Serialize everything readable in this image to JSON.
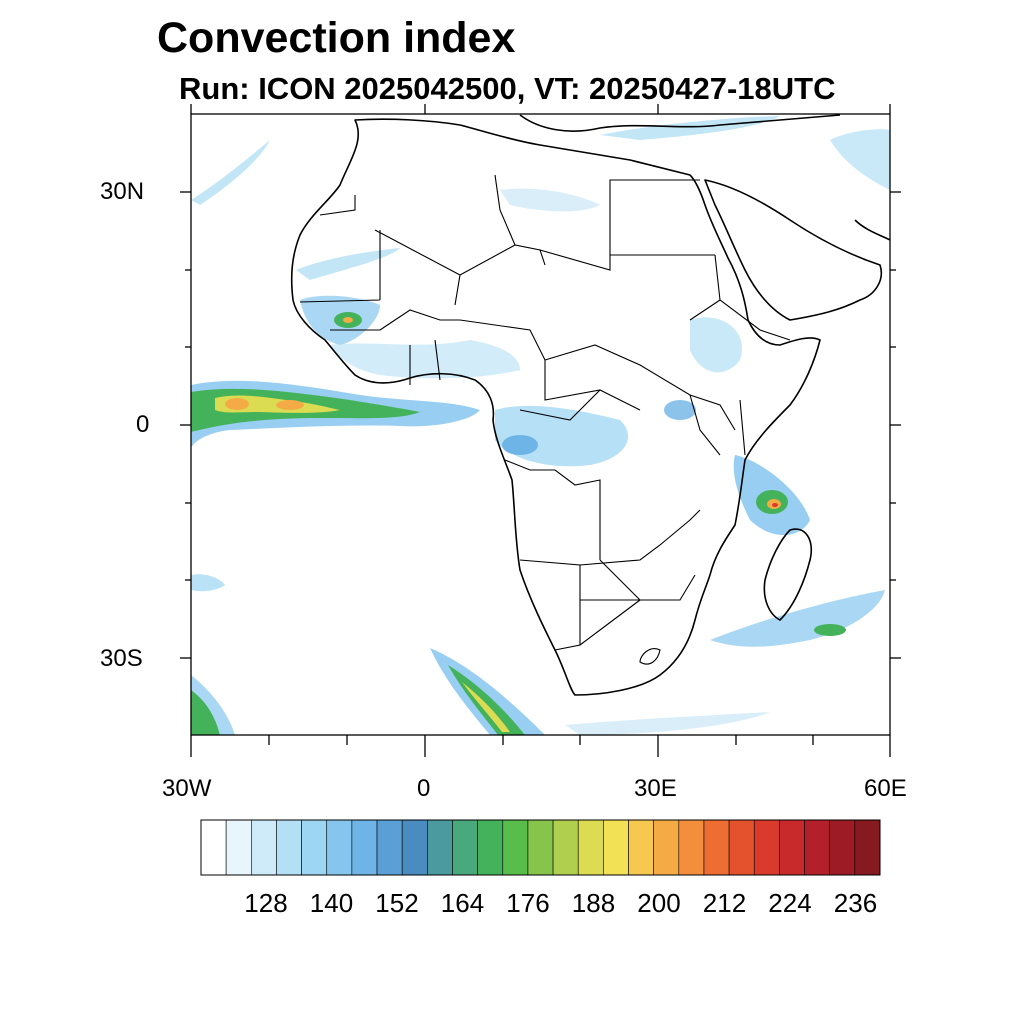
{
  "title": "Convection index",
  "subtitle": "Run: ICON 2025042500,  VT: 20250427-18UTC",
  "axes": {
    "lat_labels": [
      "30N",
      "0",
      "30S"
    ],
    "lon_labels": [
      "30W",
      "0",
      "30E",
      "60E"
    ],
    "lon_range": [
      -30,
      60
    ],
    "lat_range": [
      -40,
      40
    ]
  },
  "colorbar": {
    "colors": [
      "#ffffff",
      "#e8f5fc",
      "#cfeaf8",
      "#b4e0f5",
      "#9cd6f3",
      "#86c6ee",
      "#6eb4e6",
      "#5a9fd6",
      "#4a8cbf",
      "#4a9aa0",
      "#49a87c",
      "#44b25a",
      "#58bd4a",
      "#86c44c",
      "#b0cf4e",
      "#dcdc52",
      "#f2e155",
      "#f7c84f",
      "#f5ab45",
      "#f38e3d",
      "#ed6d33",
      "#e3522c",
      "#d93a2b",
      "#c82a2b",
      "#b3202b",
      "#9c1b24",
      "#861a20"
    ],
    "tick_labels": [
      "128",
      "140",
      "152",
      "164",
      "176",
      "188",
      "200",
      "212",
      "224",
      "236"
    ]
  },
  "features": {
    "itcz_atlantic": "strong convection band along the equator west of Africa",
    "madagascar": "convective cell northwest of Madagascar",
    "south_atlantic": "frontal convection band southwest of southern Africa"
  }
}
